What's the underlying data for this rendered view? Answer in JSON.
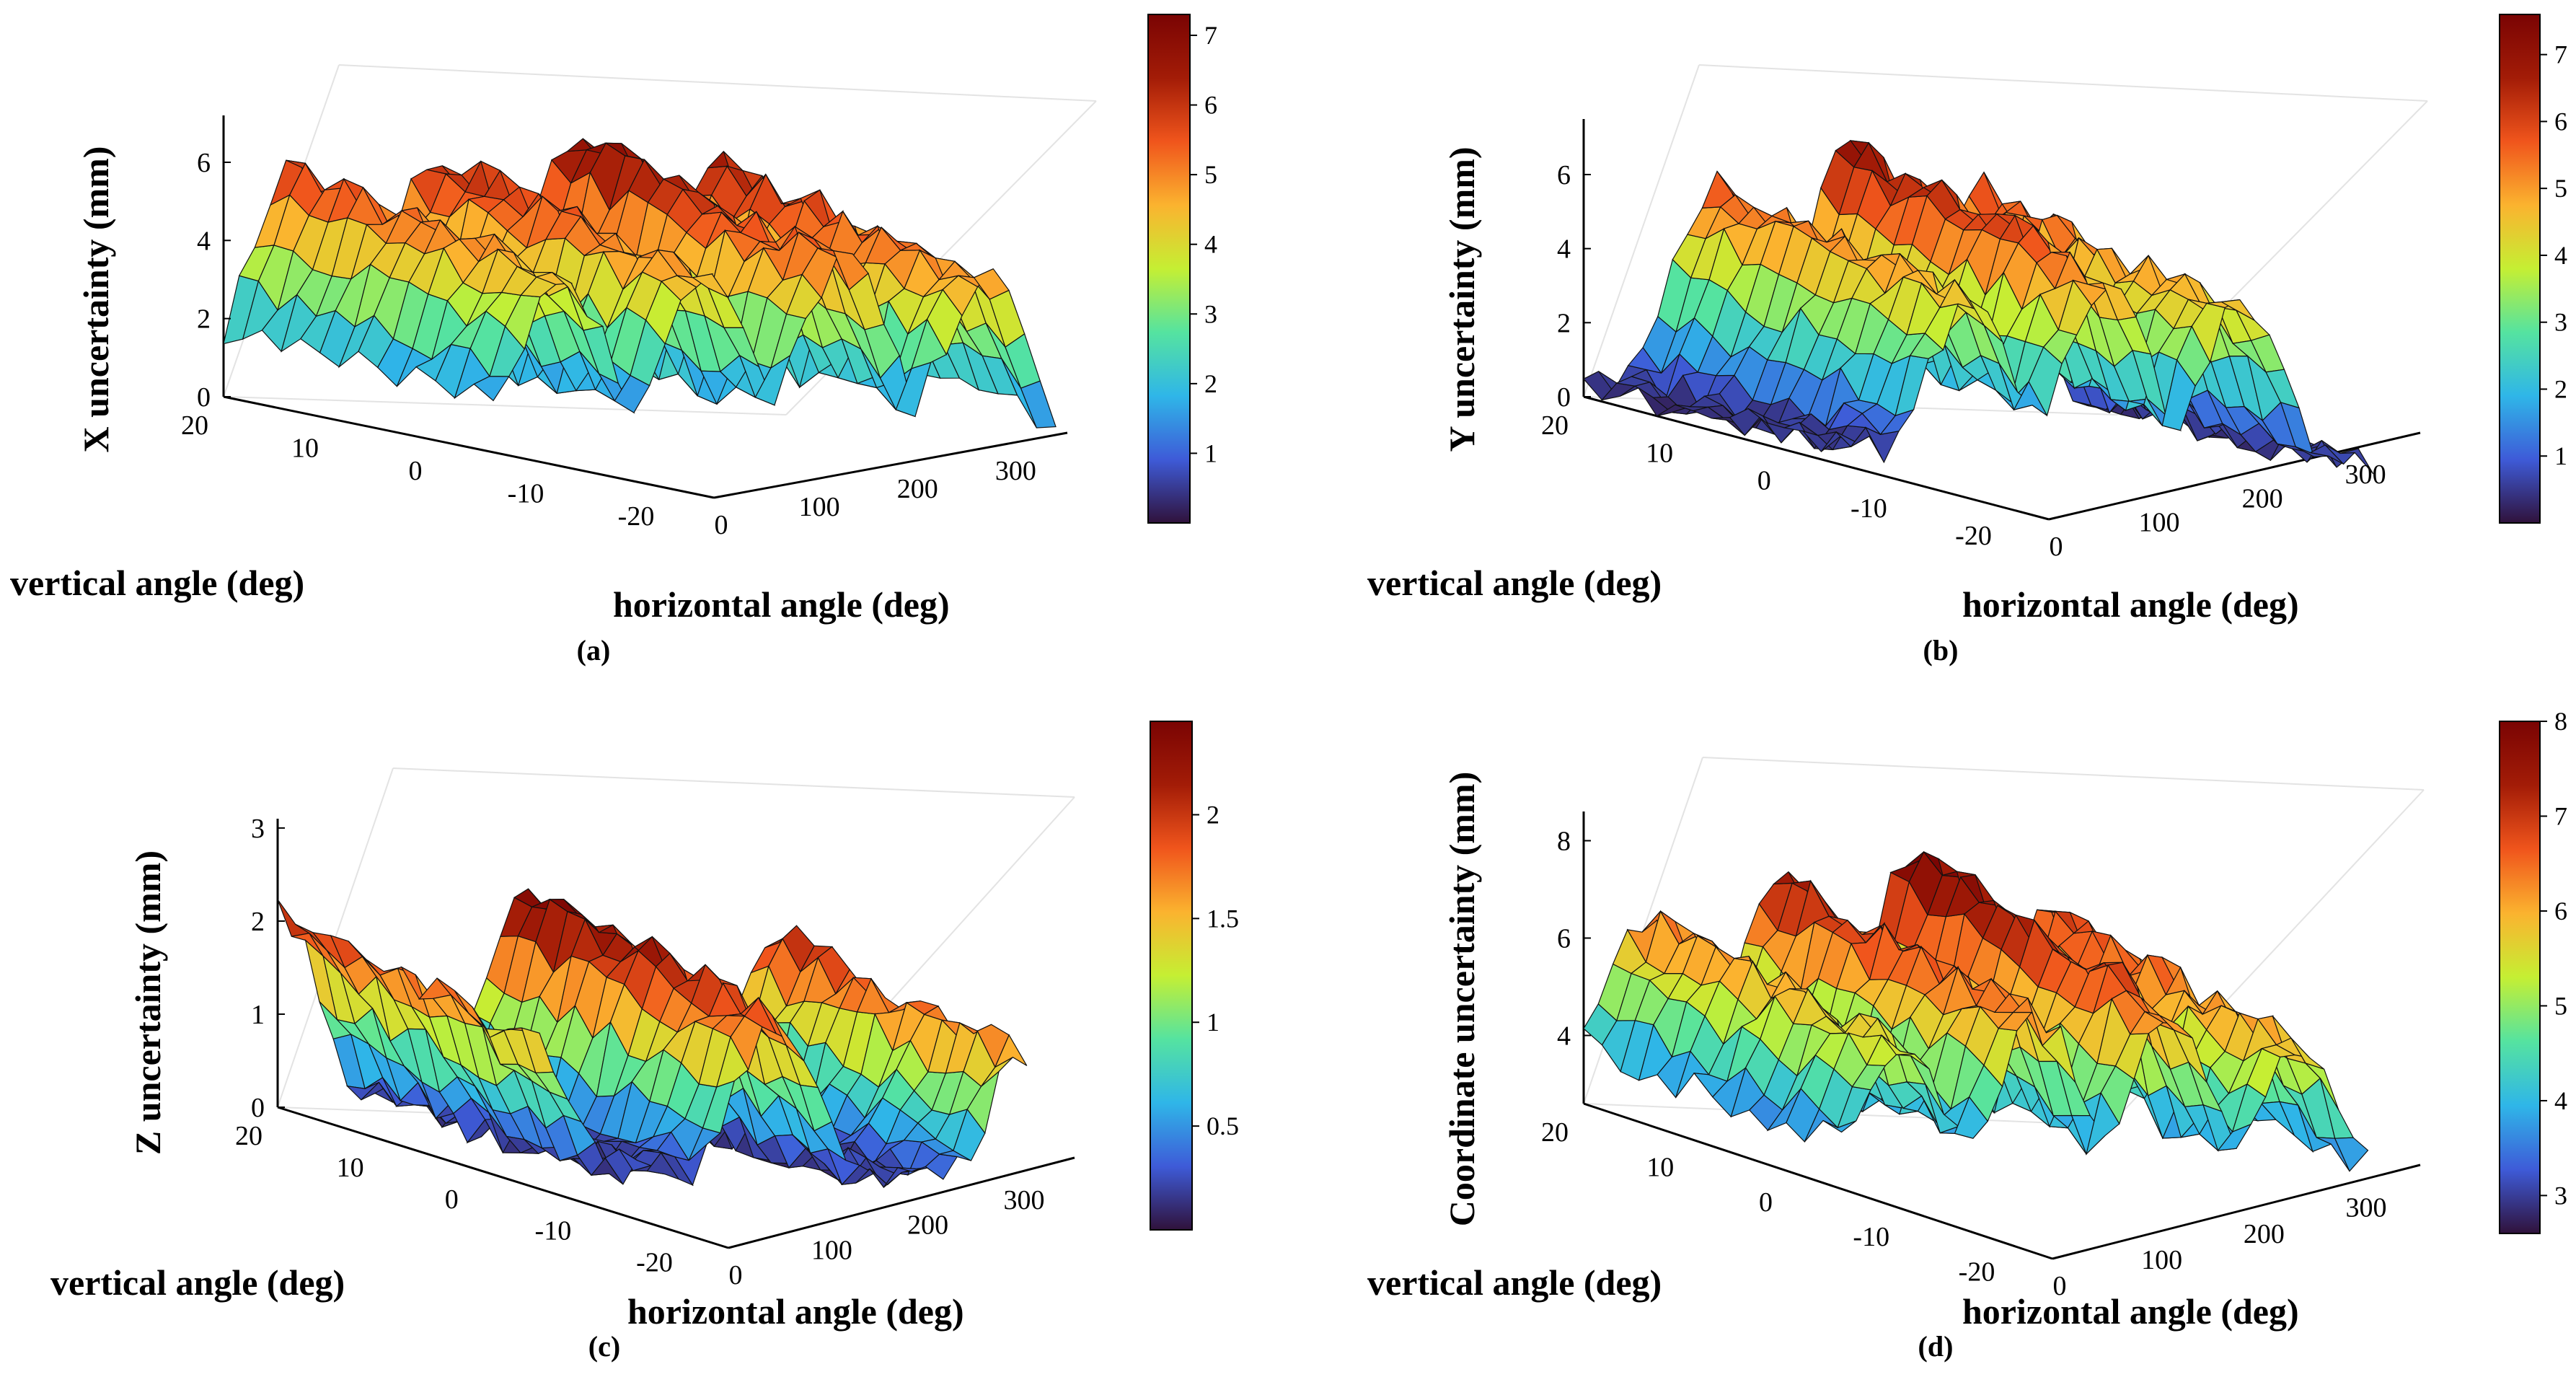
{
  "colormap": [
    "#30123b",
    "#3e5bd8",
    "#2fb6e8",
    "#55e3a0",
    "#c5ef33",
    "#fbb32f",
    "#f0551c",
    "#a31c07",
    "#7a0403"
  ],
  "chart_data": [
    {
      "type": "surface3d",
      "caption": "(a)",
      "zlabel": "X uncertainty (mm)",
      "ylabel": "vertical angle (deg)",
      "xlabel": "horizontal angle (deg)",
      "x_ticks": [
        "0",
        "100",
        "200",
        "300"
      ],
      "y_ticks": [
        "20",
        "10",
        "0",
        "-10",
        "-20"
      ],
      "z_ticks": [
        "0",
        "2",
        "4",
        "6"
      ],
      "xlim": [
        0,
        360
      ],
      "ylim": [
        -20,
        20
      ],
      "zlim": [
        0,
        7.2
      ],
      "colorbar_ticks": [
        "1",
        "2",
        "3",
        "4",
        "5",
        "6",
        "7"
      ],
      "colorbar_range": [
        0,
        7.3
      ],
      "peak_centers_deg": [
        45,
        135,
        225,
        315
      ],
      "peak_heights_mm": [
        6,
        6.3,
        7,
        6.5
      ]
    },
    {
      "type": "surface3d",
      "caption": "(b)",
      "zlabel": "Y uncertainty (mm)",
      "ylabel": "vertical angle (deg)",
      "xlabel": "horizontal angle (deg)",
      "x_ticks": [
        "0",
        "100",
        "200",
        "300"
      ],
      "y_ticks": [
        "20",
        "10",
        "0",
        "-10",
        "-20"
      ],
      "z_ticks": [
        "0",
        "2",
        "4",
        "6"
      ],
      "xlim": [
        0,
        360
      ],
      "ylim": [
        -20,
        20
      ],
      "zlim": [
        0,
        7.5
      ],
      "colorbar_ticks": [
        "1",
        "2",
        "3",
        "4",
        "5",
        "6",
        "7"
      ],
      "colorbar_range": [
        0,
        7.6
      ],
      "peak_centers_deg": [
        90,
        180,
        270
      ],
      "peak_heights_mm": [
        6,
        7,
        6
      ]
    },
    {
      "type": "surface3d",
      "caption": "(c)",
      "zlabel": "Z uncertainty (mm)",
      "ylabel": "vertical angle (deg)",
      "xlabel": "horizontal angle (deg)",
      "x_ticks": [
        "0",
        "100",
        "200",
        "300"
      ],
      "y_ticks": [
        "20",
        "10",
        "0",
        "-10",
        "-20"
      ],
      "z_ticks": [
        "0",
        "1",
        "2",
        "3"
      ],
      "xlim": [
        0,
        360
      ],
      "ylim": [
        -20,
        20
      ],
      "zlim": [
        0,
        3.1
      ],
      "colorbar_ticks": [
        "0.5",
        "1",
        "1.5",
        "2"
      ],
      "colorbar_range": [
        0,
        2.45
      ],
      "peak_centers_deg": [
        0,
        180
      ],
      "peak_heights_mm": [
        2.1,
        2.5
      ]
    },
    {
      "type": "surface3d",
      "caption": "(d)",
      "zlabel": "Coordinate uncertainty (mm)",
      "ylabel": "vertical angle (deg)",
      "xlabel": "horizontal angle (deg)",
      "x_ticks": [
        "0",
        "100",
        "200",
        "300"
      ],
      "y_ticks": [
        "20",
        "10",
        "0",
        "-10",
        "-20"
      ],
      "z_ticks": [
        "4",
        "6",
        "8"
      ],
      "xlim": [
        0,
        360
      ],
      "ylim": [
        -20,
        20
      ],
      "zlim": [
        2.6,
        8.6
      ],
      "colorbar_ticks": [
        "3",
        "4",
        "5",
        "6",
        "7",
        "8"
      ],
      "colorbar_range": [
        2.6,
        8.0
      ],
      "peak_centers_deg": [
        45,
        135,
        225,
        315
      ],
      "peak_heights_mm": [
        6.5,
        7.5,
        8,
        7
      ]
    }
  ]
}
